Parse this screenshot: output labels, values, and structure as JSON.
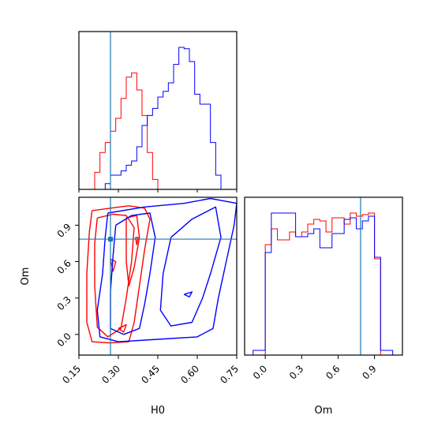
{
  "chart_data": [
    {
      "type": "histogram",
      "panel": "H0 marginal",
      "xlim": [
        0.15,
        0.75
      ],
      "bin_edges": [
        0.15,
        0.17,
        0.19,
        0.21,
        0.23,
        0.25,
        0.27,
        0.29,
        0.31,
        0.33,
        0.35,
        0.37,
        0.39,
        0.41,
        0.43,
        0.45,
        0.47,
        0.49,
        0.51,
        0.53,
        0.55,
        0.57,
        0.59,
        0.61,
        0.63,
        0.65,
        0.67,
        0.69,
        0.71,
        0.73,
        0.75
      ],
      "series": [
        {
          "color": "#ff0000",
          "values": [
            0,
            0,
            0,
            0.12,
            0.26,
            0.33,
            0.41,
            0.5,
            0.64,
            0.79,
            0.82,
            0.7,
            0.52,
            0.26,
            0.07,
            0,
            0,
            0,
            0,
            0,
            0,
            0,
            0,
            0,
            0,
            0,
            0,
            0,
            0,
            0
          ]
        },
        {
          "color": "#0000ff",
          "values": [
            0,
            0,
            0,
            0,
            0,
            0.04,
            0.1,
            0.1,
            0.13,
            0.17,
            0.2,
            0.3,
            0.45,
            0.52,
            0.57,
            0.65,
            0.69,
            0.75,
            0.88,
            1.0,
            0.99,
            0.9,
            0.67,
            0.6,
            0.6,
            0.33,
            0.1,
            0,
            0,
            0
          ]
        }
      ],
      "truth_line": {
        "x": 0.27,
        "color": "#1f77b4"
      },
      "yticks_shown": false
    },
    {
      "type": "contour",
      "panel": "H0 vs Om",
      "xlabel": "H0",
      "ylabel": "Om",
      "xlim": [
        0.15,
        0.75
      ],
      "ylim": [
        -0.17,
        1.13
      ],
      "xticks": [
        "0.15",
        "0.30",
        "0.45",
        "0.60",
        "0.75"
      ],
      "xtick_values": [
        0.15,
        0.3,
        0.45,
        0.6,
        0.75
      ],
      "yticks": [
        "0.0",
        "0.3",
        "0.6",
        "0.9"
      ],
      "ytick_values": [
        0.0,
        0.3,
        0.6,
        0.9
      ],
      "series": [
        {
          "color": "#ff0000",
          "contours": [
            [
              [
                0.2,
                1.02
              ],
              [
                0.27,
                1.04
              ],
              [
                0.34,
                1.06
              ],
              [
                0.4,
                1.04
              ],
              [
                0.42,
                0.95
              ],
              [
                0.4,
                0.7
              ],
              [
                0.38,
                0.4
              ],
              [
                0.36,
                0.1
              ],
              [
                0.34,
                -0.06
              ],
              [
                0.27,
                -0.07
              ],
              [
                0.2,
                -0.06
              ],
              [
                0.18,
                0.1
              ],
              [
                0.18,
                0.5
              ],
              [
                0.19,
                0.85
              ],
              [
                0.2,
                1.02
              ]
            ],
            [
              [
                0.22,
                0.96
              ],
              [
                0.28,
                0.99
              ],
              [
                0.33,
                0.98
              ],
              [
                0.36,
                0.88
              ],
              [
                0.35,
                0.6
              ],
              [
                0.33,
                0.3
              ],
              [
                0.31,
                0.05
              ],
              [
                0.26,
                -0.02
              ],
              [
                0.22,
                0.06
              ],
              [
                0.21,
                0.4
              ],
              [
                0.21,
                0.75
              ],
              [
                0.22,
                0.96
              ]
            ],
            [
              [
                0.33,
                0.96
              ],
              [
                0.37,
                0.98
              ],
              [
                0.38,
                0.8
              ],
              [
                0.36,
                0.55
              ],
              [
                0.34,
                0.4
              ],
              [
                0.33,
                0.6
              ],
              [
                0.33,
                0.96
              ]
            ],
            [
              [
                0.27,
                0.62
              ],
              [
                0.28,
                0.52
              ],
              [
                0.29,
                0.6
              ],
              [
                0.27,
                0.62
              ]
            ],
            [
              [
                0.3,
                0.05
              ],
              [
                0.32,
                0.02
              ],
              [
                0.33,
                0.08
              ],
              [
                0.3,
                0.05
              ]
            ],
            [
              [
                0.365,
                0.8
              ],
              [
                0.37,
                0.74
              ],
              [
                0.375,
                0.8
              ],
              [
                0.365,
                0.8
              ]
            ]
          ]
        },
        {
          "color": "#0000ff",
          "contours": [
            [
              [
                0.26,
                1.0
              ],
              [
                0.4,
                1.05
              ],
              [
                0.55,
                1.08
              ],
              [
                0.65,
                1.12
              ],
              [
                0.75,
                1.08
              ],
              [
                0.74,
                0.9
              ],
              [
                0.71,
                0.6
              ],
              [
                0.68,
                0.3
              ],
              [
                0.66,
                0.05
              ],
              [
                0.6,
                -0.02
              ],
              [
                0.45,
                -0.04
              ],
              [
                0.3,
                -0.06
              ],
              [
                0.23,
                -0.02
              ],
              [
                0.22,
                0.2
              ],
              [
                0.24,
                0.5
              ],
              [
                0.25,
                0.8
              ],
              [
                0.26,
                1.0
              ]
            ],
            [
              [
                0.29,
                0.9
              ],
              [
                0.35,
                0.98
              ],
              [
                0.42,
                1.0
              ],
              [
                0.44,
                0.8
              ],
              [
                0.42,
                0.5
              ],
              [
                0.4,
                0.25
              ],
              [
                0.38,
                0.05
              ],
              [
                0.32,
                0.0
              ],
              [
                0.27,
                0.05
              ],
              [
                0.27,
                0.35
              ],
              [
                0.28,
                0.65
              ],
              [
                0.29,
                0.9
              ]
            ],
            [
              [
                0.5,
                0.8
              ],
              [
                0.58,
                0.95
              ],
              [
                0.67,
                1.05
              ],
              [
                0.69,
                0.8
              ],
              [
                0.65,
                0.5
              ],
              [
                0.62,
                0.3
              ],
              [
                0.58,
                0.1
              ],
              [
                0.5,
                0.07
              ],
              [
                0.46,
                0.2
              ],
              [
                0.47,
                0.5
              ],
              [
                0.5,
                0.8
              ]
            ],
            [
              [
                0.55,
                0.33
              ],
              [
                0.57,
                0.31
              ],
              [
                0.58,
                0.35
              ],
              [
                0.55,
                0.33
              ]
            ]
          ]
        }
      ],
      "truth_point": {
        "x": 0.27,
        "y": 0.785,
        "color": "#1f77b4"
      }
    },
    {
      "type": "histogram",
      "panel": "Om marginal",
      "xlabel": "Om",
      "xlim": [
        -0.17,
        1.13
      ],
      "xticks": [
        "0.0",
        "0.3",
        "0.6",
        "0.9"
      ],
      "xtick_values": [
        0.0,
        0.3,
        0.6,
        0.9
      ],
      "bin_edges": [
        -0.15,
        -0.1,
        -0.05,
        0.0,
        0.05,
        0.1,
        0.15,
        0.2,
        0.25,
        0.3,
        0.35,
        0.4,
        0.45,
        0.5,
        0.55,
        0.6,
        0.65,
        0.7,
        0.75,
        0.8,
        0.85,
        0.9,
        0.95,
        1.0,
        1.05,
        1.1
      ],
      "series": [
        {
          "color": "#ff0000",
          "values": [
            0,
            0,
            0,
            0.7,
            0.8,
            0.73,
            0.73,
            0.78,
            0.75,
            0.78,
            0.83,
            0.86,
            0.85,
            0.78,
            0.87,
            0.87,
            0.83,
            0.9,
            0.88,
            0.89,
            0.9,
            0.61,
            0,
            0,
            0
          ]
        },
        {
          "color": "#0000ff",
          "values": [
            0,
            0.03,
            0.03,
            0.65,
            0.9,
            0.9,
            0.9,
            0.9,
            0.75,
            0.75,
            0.77,
            0.8,
            0.68,
            0.68,
            0.77,
            0.77,
            0.86,
            0.87,
            0.8,
            0.85,
            0.88,
            0.62,
            0.03,
            0.03,
            0
          ]
        }
      ],
      "truth_line": {
        "x": 0.785,
        "color": "#1f77b4"
      }
    }
  ]
}
